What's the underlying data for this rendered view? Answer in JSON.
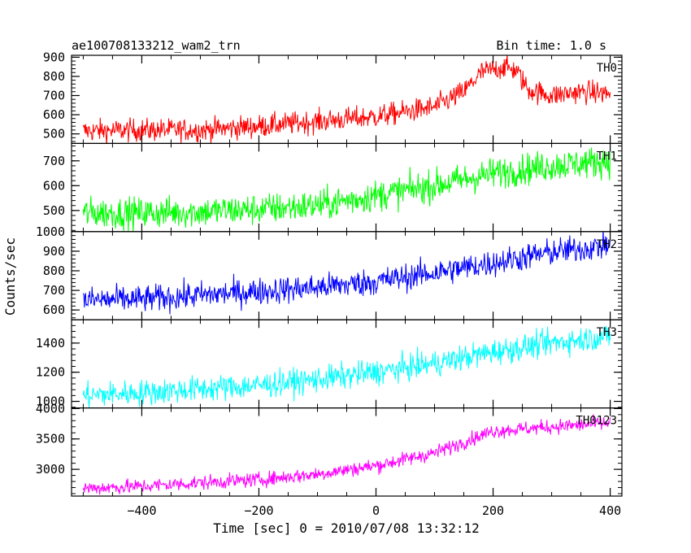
{
  "chart_data": {
    "type": "line",
    "title": "ae100708133212_wam2_trn",
    "subtitle": "Bin time: 1.0 s",
    "xlabel": "Time [sec] 0 = 2010/07/08 13:32:12",
    "ylabel": "Counts/sec",
    "xlim": [
      -520,
      420
    ],
    "x_ticks": [
      -400,
      -200,
      0,
      200,
      400
    ],
    "x_tick_labels": [
      "−400",
      "−200",
      "0",
      "200",
      "400"
    ],
    "x_range": [
      -500,
      400
    ],
    "grid": false,
    "panels": [
      {
        "name": "TH0",
        "color": "#ff0000",
        "ylim": [
          450,
          910
        ],
        "y_ticks": [
          500,
          600,
          700,
          800,
          900
        ],
        "y_tick_labels": [
          "500",
          "600",
          "700",
          "800",
          "900"
        ],
        "noise": 30,
        "trend": [
          [
            -500,
            515
          ],
          [
            -400,
            520
          ],
          [
            -300,
            520
          ],
          [
            -200,
            540
          ],
          [
            -100,
            565
          ],
          [
            0,
            590
          ],
          [
            100,
            640
          ],
          [
            150,
            720
          ],
          [
            180,
            820
          ],
          [
            220,
            850
          ],
          [
            240,
            830
          ],
          [
            260,
            730
          ],
          [
            300,
            700
          ],
          [
            350,
            720
          ],
          [
            400,
            710
          ]
        ]
      },
      {
        "name": "TH1",
        "color": "#00ff00",
        "ylim": [
          415,
          770
        ],
        "y_ticks": [
          500,
          600,
          700
        ],
        "y_tick_labels": [
          "500",
          "600",
          "700"
        ],
        "noise": 32,
        "trend": [
          [
            -500,
            490
          ],
          [
            -400,
            490
          ],
          [
            -300,
            495
          ],
          [
            -200,
            505
          ],
          [
            -100,
            520
          ],
          [
            0,
            560
          ],
          [
            100,
            600
          ],
          [
            200,
            650
          ],
          [
            300,
            680
          ],
          [
            400,
            700
          ]
        ]
      },
      {
        "name": "TH2",
        "color": "#0000ff",
        "ylim": [
          550,
          1000
        ],
        "y_ticks": [
          600,
          700,
          800,
          900,
          1000
        ],
        "y_tick_labels": [
          "600",
          "700",
          "800",
          "900",
          "1000"
        ],
        "noise": 35,
        "trend": [
          [
            -500,
            650
          ],
          [
            -400,
            655
          ],
          [
            -300,
            675
          ],
          [
            -200,
            695
          ],
          [
            -100,
            715
          ],
          [
            0,
            745
          ],
          [
            100,
            790
          ],
          [
            200,
            840
          ],
          [
            300,
            895
          ],
          [
            400,
            930
          ]
        ]
      },
      {
        "name": "TH3",
        "color": "#00ffff",
        "ylim": [
          955,
          1560
        ],
        "y_ticks": [
          1000,
          1200,
          1400
        ],
        "y_tick_labels": [
          "1000",
          "1200",
          "1400"
        ],
        "noise": 45,
        "trend": [
          [
            -500,
            1040
          ],
          [
            -400,
            1060
          ],
          [
            -300,
            1085
          ],
          [
            -200,
            1110
          ],
          [
            -100,
            1150
          ],
          [
            0,
            1200
          ],
          [
            100,
            1260
          ],
          [
            200,
            1340
          ],
          [
            300,
            1400
          ],
          [
            400,
            1450
          ]
        ]
      },
      {
        "name": "TH0123",
        "color": "#ff00ff",
        "ylim": [
          2560,
          4010
        ],
        "y_ticks": [
          3000,
          3500,
          4000
        ],
        "y_tick_labels": [
          "3000",
          "3500",
          "4000"
        ],
        "noise": 60,
        "trend": [
          [
            -500,
            2690
          ],
          [
            -400,
            2720
          ],
          [
            -300,
            2780
          ],
          [
            -200,
            2830
          ],
          [
            -100,
            2920
          ],
          [
            0,
            3060
          ],
          [
            100,
            3270
          ],
          [
            150,
            3450
          ],
          [
            200,
            3630
          ],
          [
            300,
            3700
          ],
          [
            400,
            3760
          ]
        ]
      }
    ]
  }
}
